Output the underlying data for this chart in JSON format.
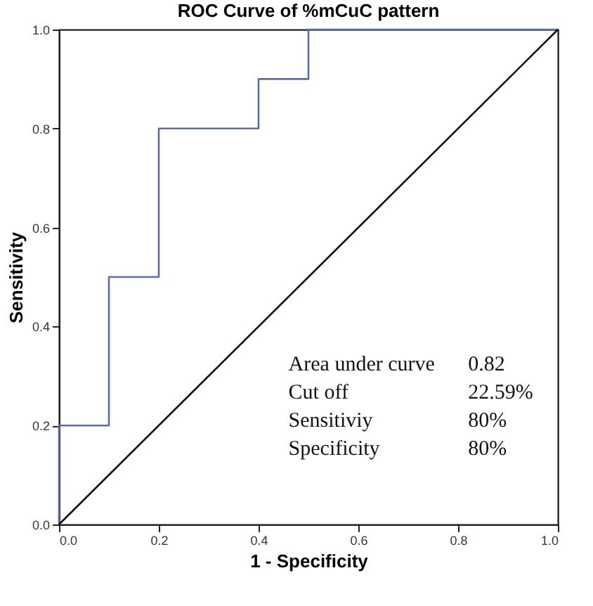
{
  "chart_data": {
    "type": "line",
    "title": "ROC Curve of %mCuC pattern",
    "xlabel": "1 - Specificity",
    "ylabel": "Sensitivity",
    "xlim": [
      0,
      1
    ],
    "ylim": [
      0,
      1
    ],
    "xticks": [
      {
        "value": 0,
        "label": "0.0"
      },
      {
        "value": 0.2,
        "label": "0.2"
      },
      {
        "value": 0.4,
        "label": "0.4"
      },
      {
        "value": 0.6,
        "label": "0.6"
      },
      {
        "value": 0.8,
        "label": "0.8"
      },
      {
        "value": 1,
        "label": "1.0"
      }
    ],
    "yticks": [
      {
        "value": 0,
        "label": "0.0"
      },
      {
        "value": 0.2,
        "label": "0.2"
      },
      {
        "value": 0.4,
        "label": "0.4"
      },
      {
        "value": 0.6,
        "label": "0.6"
      },
      {
        "value": 0.8,
        "label": "0.8"
      },
      {
        "value": 1,
        "label": "1.0"
      }
    ],
    "grid": false,
    "marker": "none",
    "line_style": "solid",
    "series": [
      {
        "type": "step",
        "color": "#5b6ea8",
        "x": [
          0,
          0,
          0.1,
          0.2,
          0.4,
          0.5,
          1
        ],
        "values": [
          0,
          0.2,
          0.5,
          0.8,
          0.9,
          1,
          1
        ]
      },
      {
        "type": "line",
        "color": "#111111",
        "x": [
          0,
          1
        ],
        "values": [
          0,
          1
        ]
      }
    ],
    "annotations": [
      "Area under curve",
      "0.82",
      "Cut off",
      "22.59%",
      "Sensitiviy",
      "80%",
      "Specificity",
      "80%"
    ]
  }
}
